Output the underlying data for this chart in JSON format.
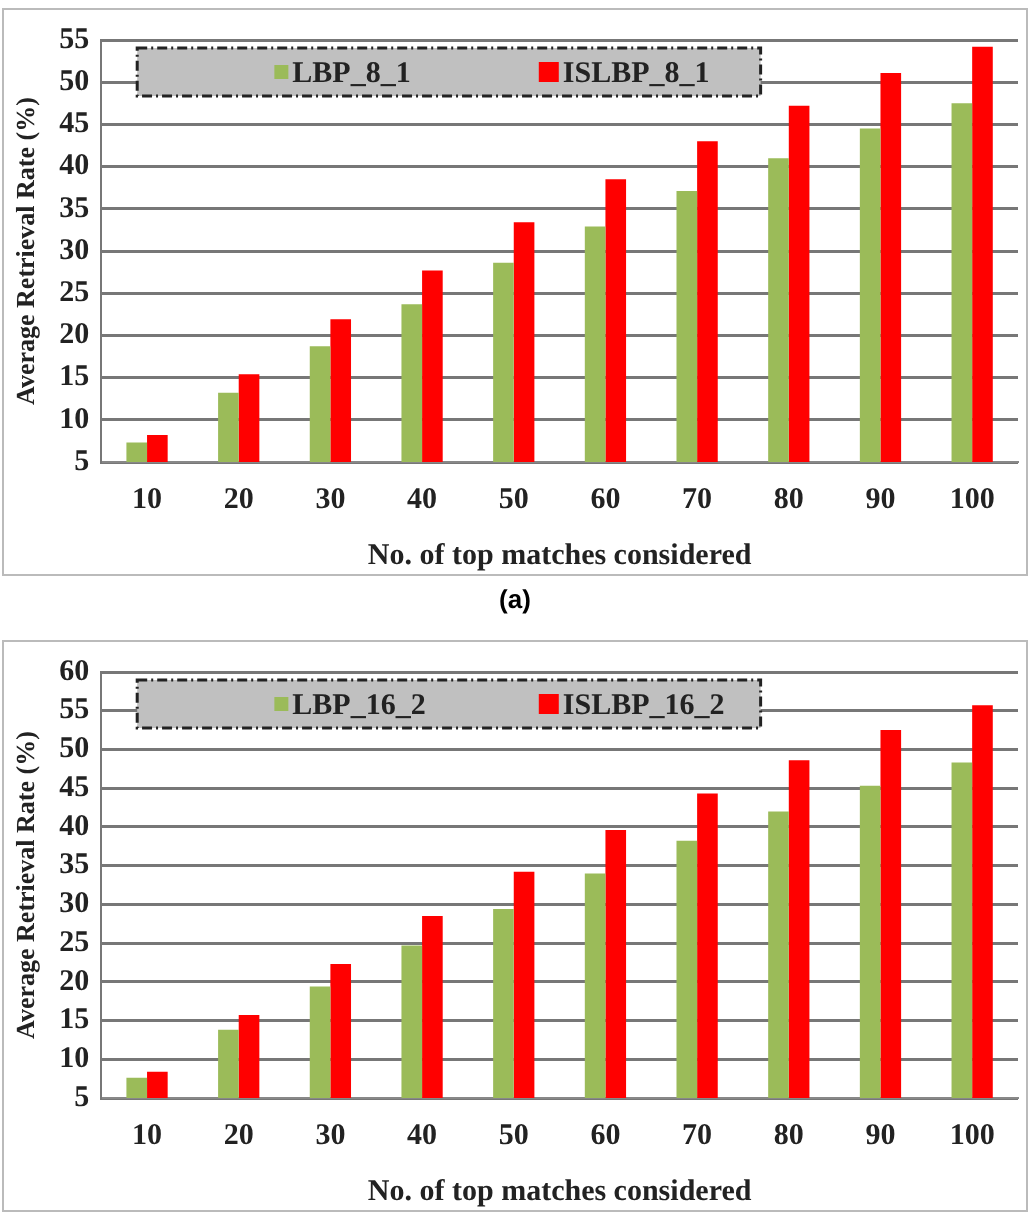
{
  "chart_data": [
    {
      "type": "bar",
      "xlabel": "No. of top matches considered",
      "ylabel": "Average Retrieval Rate (%)",
      "annotations": [
        "(a)"
      ],
      "categories": [
        "10",
        "20",
        "30",
        "40",
        "50",
        "60",
        "70",
        "80",
        "90",
        "100"
      ],
      "ylim": [
        5,
        55
      ],
      "yticks": [
        5,
        10,
        15,
        20,
        25,
        30,
        35,
        40,
        45,
        50,
        55
      ],
      "grid": "y",
      "legend": "top",
      "series": [
        {
          "name": "LBP_8_1",
          "color": "#9bbb59",
          "values": [
            7.3,
            13.2,
            18.7,
            23.7,
            28.6,
            32.9,
            37.1,
            41.0,
            44.5,
            47.5
          ]
        },
        {
          "name": "ISLBP_8_1",
          "color": "#ff0000",
          "values": [
            8.2,
            15.4,
            21.9,
            27.7,
            33.4,
            38.5,
            43.0,
            47.2,
            51.1,
            54.2
          ]
        }
      ]
    },
    {
      "type": "bar",
      "xlabel": "No. of top matches considered",
      "ylabel": "Average Retrieval Rate (%)",
      "categories": [
        "10",
        "20",
        "30",
        "40",
        "50",
        "60",
        "70",
        "80",
        "90",
        "100"
      ],
      "ylim": [
        5,
        60
      ],
      "yticks": [
        5,
        10,
        15,
        20,
        25,
        30,
        35,
        40,
        45,
        50,
        55,
        60
      ],
      "grid": "y",
      "legend": "top",
      "series": [
        {
          "name": "LBP_16_2",
          "color": "#9bbb59",
          "values": [
            7.6,
            13.8,
            19.4,
            24.7,
            29.4,
            34.0,
            38.2,
            42.0,
            45.3,
            48.3
          ]
        },
        {
          "name": "ISLBP_16_2",
          "color": "#ff0000",
          "values": [
            8.4,
            15.7,
            22.3,
            28.5,
            34.2,
            39.6,
            44.3,
            48.6,
            52.5,
            55.7
          ]
        }
      ]
    }
  ]
}
